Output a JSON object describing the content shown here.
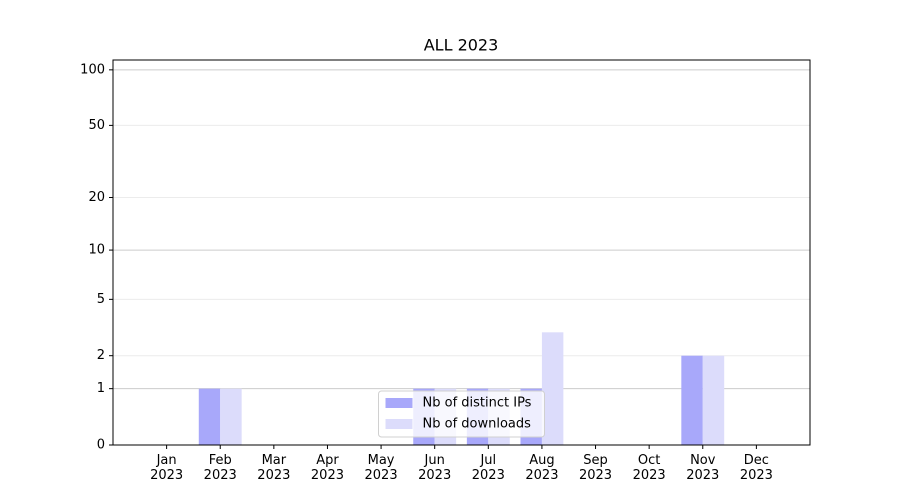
{
  "chart_data": {
    "type": "bar",
    "title": "ALL 2023",
    "categories": [
      "Jan 2023",
      "Feb 2023",
      "Mar 2023",
      "Apr 2023",
      "May 2023",
      "Jun 2023",
      "Jul 2023",
      "Aug 2023",
      "Sep 2023",
      "Oct 2023",
      "Nov 2023",
      "Dec 2023"
    ],
    "series": [
      {
        "name": "Nb of distinct IPs",
        "color": "#a8a8fa",
        "values": [
          0,
          1,
          0,
          0,
          0,
          1,
          1,
          1,
          0,
          0,
          2,
          0
        ]
      },
      {
        "name": "Nb of downloads",
        "color": "#dcdcfb",
        "values": [
          0,
          1,
          0,
          0,
          0,
          1,
          1,
          3,
          0,
          0,
          2,
          0
        ]
      }
    ],
    "yscale": "log1p",
    "ylim": [
      0,
      113
    ],
    "yticks": [
      0,
      1,
      2,
      5,
      10,
      20,
      50,
      100
    ],
    "grid": true,
    "legend": "lower center"
  }
}
